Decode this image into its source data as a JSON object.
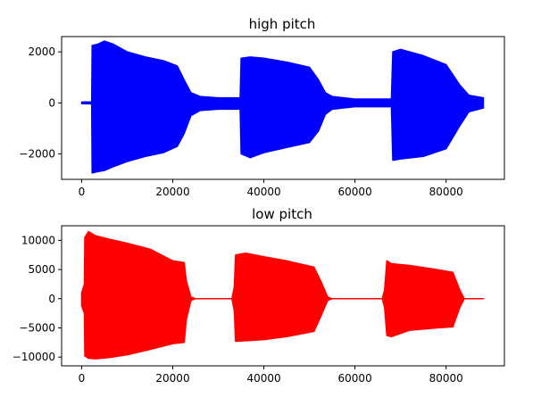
{
  "chart_data": [
    {
      "type": "line",
      "title": "high pitch",
      "xlabel": "",
      "ylabel": "",
      "xlim": [
        -4400,
        92800
      ],
      "ylim": [
        -3000,
        2600
      ],
      "xticks": [
        0,
        20000,
        40000,
        60000,
        80000
      ],
      "xtick_labels": [
        "0",
        "20000",
        "40000",
        "60000",
        "80000"
      ],
      "yticks": [
        -2000,
        0,
        2000
      ],
      "ytick_labels": [
        "−2000",
        "0",
        "2000"
      ],
      "grid": false,
      "legend": "none",
      "series": [
        {
          "color": "#0000ff",
          "style": "dense oscillating waveform (amplitude envelope shown)",
          "envelope": [
            [
              0,
              30,
              -30
            ],
            [
              2200,
              40,
              -40
            ],
            [
              2300,
              2250,
              -2750
            ],
            [
              3500,
              2300,
              -2700
            ],
            [
              5000,
              2420,
              -2650
            ],
            [
              7000,
              2300,
              -2500
            ],
            [
              10000,
              2000,
              -2300
            ],
            [
              14000,
              1800,
              -2100
            ],
            [
              18000,
              1650,
              -1950
            ],
            [
              21000,
              1450,
              -1700
            ],
            [
              22500,
              900,
              -1200
            ],
            [
              24000,
              400,
              -500
            ],
            [
              26000,
              250,
              -300
            ],
            [
              30000,
              200,
              -250
            ],
            [
              34800,
              200,
              -250
            ],
            [
              35000,
              1750,
              -2000
            ],
            [
              37000,
              1800,
              -2150
            ],
            [
              40000,
              1750,
              -1950
            ],
            [
              45000,
              1600,
              -1750
            ],
            [
              50000,
              1400,
              -1550
            ],
            [
              52000,
              900,
              -1100
            ],
            [
              53500,
              400,
              -450
            ],
            [
              55000,
              250,
              -250
            ],
            [
              60000,
              150,
              -150
            ],
            [
              68000,
              150,
              -150
            ],
            [
              68300,
              2000,
              -2250
            ],
            [
              70000,
              2100,
              -2200
            ],
            [
              75000,
              1850,
              -2100
            ],
            [
              80000,
              1500,
              -1800
            ],
            [
              83000,
              700,
              -900
            ],
            [
              85000,
              300,
              -350
            ],
            [
              88200,
              200,
              -200
            ]
          ]
        }
      ]
    },
    {
      "type": "line",
      "title": "low pitch",
      "xlabel": "",
      "ylabel": "",
      "xlim": [
        -4400,
        92800
      ],
      "ylim": [
        -11500,
        12500
      ],
      "xticks": [
        0,
        20000,
        40000,
        60000,
        80000
      ],
      "xtick_labels": [
        "0",
        "20000",
        "40000",
        "60000",
        "80000"
      ],
      "yticks": [
        -10000,
        -5000,
        0,
        5000,
        10000
      ],
      "ytick_labels": [
        "−10000",
        "−5000",
        "0",
        "5000",
        "10000"
      ],
      "grid": false,
      "legend": "none",
      "series": [
        {
          "color": "#ff0000",
          "style": "dense oscillating waveform (amplitude envelope shown)",
          "envelope": [
            [
              0,
              1000,
              -1200
            ],
            [
              600,
              2500,
              -2500
            ],
            [
              700,
              10500,
              -9800
            ],
            [
              1500,
              11500,
              -10200
            ],
            [
              3000,
              10800,
              -10300
            ],
            [
              6000,
              10200,
              -10100
            ],
            [
              10000,
              9500,
              -9600
            ],
            [
              15000,
              8500,
              -8700
            ],
            [
              20000,
              6500,
              -7700
            ],
            [
              22500,
              6200,
              -7500
            ],
            [
              23000,
              3000,
              -3500
            ],
            [
              24000,
              300,
              -300
            ],
            [
              25000,
              0,
              0
            ],
            [
              33000,
              0,
              0
            ],
            [
              33500,
              2000,
              -2000
            ],
            [
              33800,
              7500,
              -7300
            ],
            [
              36000,
              7800,
              -7200
            ],
            [
              40000,
              7200,
              -7000
            ],
            [
              45000,
              6500,
              -6500
            ],
            [
              51000,
              5400,
              -5600
            ],
            [
              52500,
              3000,
              -3000
            ],
            [
              54000,
              300,
              -300
            ],
            [
              55000,
              0,
              0
            ],
            [
              66000,
              0,
              0
            ],
            [
              66500,
              1500,
              -1500
            ],
            [
              67000,
              6500,
              -6300
            ],
            [
              68000,
              6000,
              -6500
            ],
            [
              72000,
              5700,
              -5400
            ],
            [
              78000,
              5000,
              -5000
            ],
            [
              81500,
              4500,
              -4800
            ],
            [
              83000,
              1500,
              -1500
            ],
            [
              84000,
              0,
              0
            ],
            [
              88200,
              0,
              0
            ]
          ]
        }
      ]
    }
  ]
}
